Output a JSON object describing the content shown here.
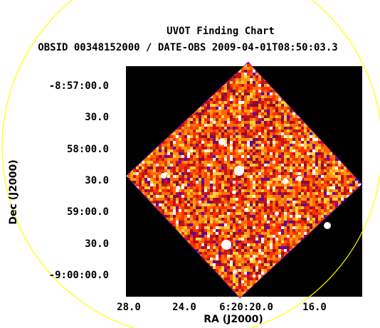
{
  "title": "UVOT Finding Chart",
  "subtitle": "OBSID 00348152000 / DATE-OBS 2009-04-01T08:50:03.3",
  "axes": {
    "xlabel": "RA (J2000)",
    "ylabel": "Dec (J2000)",
    "dec_ticks": [
      "-8:57:00.0",
      "30.0",
      "58:00.0",
      "30.0",
      "59:00.0",
      "30.0",
      "-9:00:00.0"
    ],
    "ra_ticks": [
      "28.0",
      "24.0",
      "6:20:20.0",
      "16.0"
    ]
  },
  "colors": {
    "background": "#000000",
    "field_circle": "#ffff00",
    "image_low": "#5a00b4",
    "image_mid": "#ff4a00",
    "image_high": "#ffffff"
  }
}
